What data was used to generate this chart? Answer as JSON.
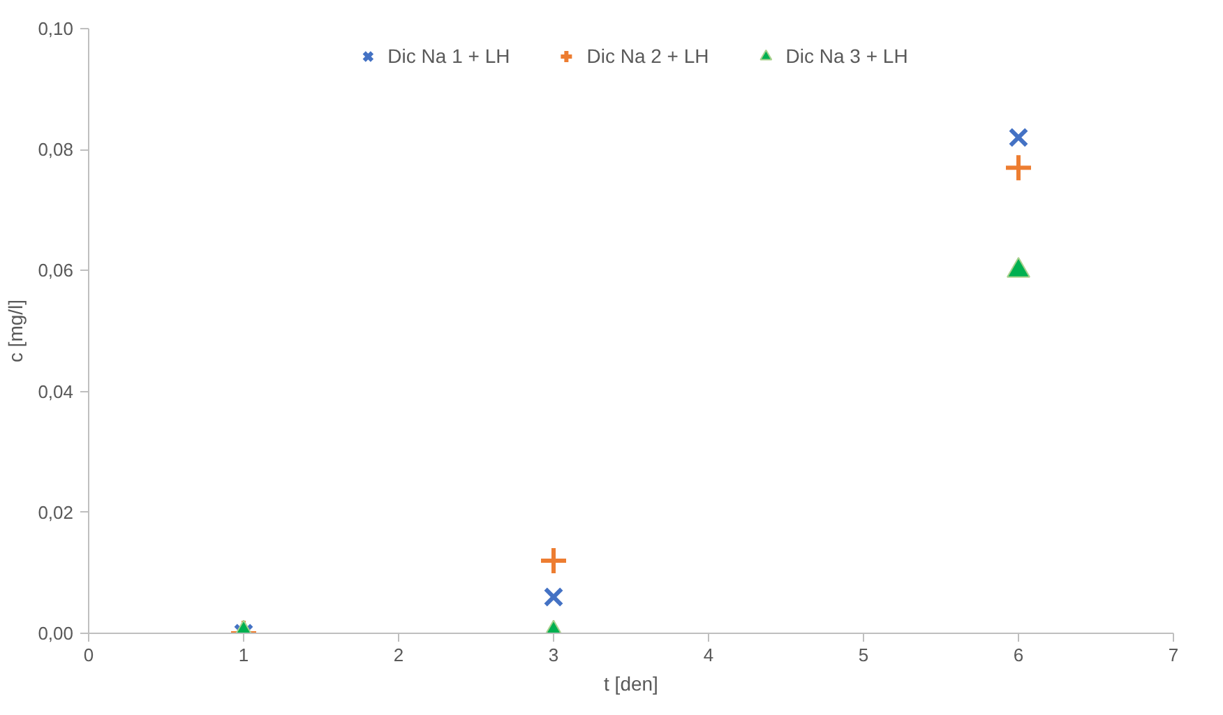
{
  "chart_data": {
    "type": "scatter",
    "xlabel": "t [den]",
    "ylabel": "c [mg/l]",
    "x": [
      1,
      3,
      6
    ],
    "series": [
      {
        "name": "Dic Na 1 + LH",
        "color": "#4472c4",
        "marker": "cross",
        "values": [
          0,
          0.006,
          0.082
        ]
      },
      {
        "name": "Dic Na 2 + LH",
        "color": "#ed7d31",
        "marker": "plus",
        "values": [
          0,
          0.012,
          0.077
        ]
      },
      {
        "name": "Dic Na 3 + LH",
        "color": "#00b050",
        "marker": "triangle",
        "values": [
          0,
          0,
          0.06
        ]
      }
    ],
    "xlim": [
      0,
      7
    ],
    "xticks": [
      0,
      1,
      2,
      3,
      4,
      5,
      6,
      7
    ],
    "ylim": [
      0,
      0.1
    ],
    "yticks": [
      {
        "value": 0,
        "label": "0,00"
      },
      {
        "value": 0.02,
        "label": "0,02"
      },
      {
        "value": 0.04,
        "label": "0,04"
      },
      {
        "value": 0.06,
        "label": "0,06"
      },
      {
        "value": 0.08,
        "label": "0,08"
      },
      {
        "value": 0.1,
        "label": "0,10"
      }
    ],
    "grid": false,
    "legend": "top"
  }
}
